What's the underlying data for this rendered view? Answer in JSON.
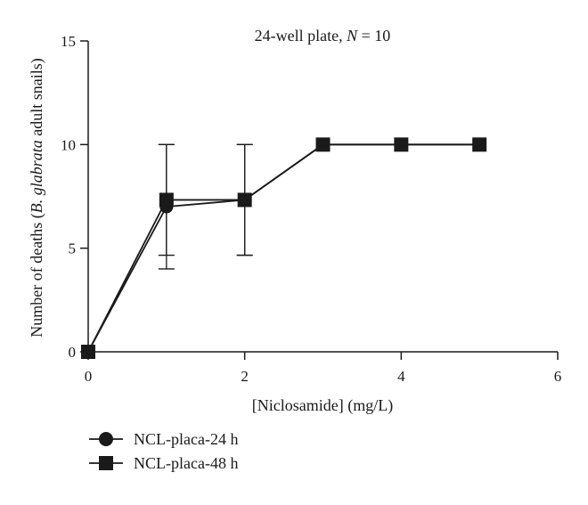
{
  "chart_data": {
    "type": "line",
    "annotation": {
      "prefix": "24-well plate, ",
      "italic": "N",
      "suffix": " = 10"
    },
    "xlabel": "[Niclosamide] (mg/L)",
    "ylabel": {
      "prefix": "Number of deaths (",
      "italic": "B. glabrata",
      "suffix": " adult snails)"
    },
    "xlim": [
      0,
      6
    ],
    "ylim": [
      0,
      15
    ],
    "x_ticks": [
      "0",
      "2",
      "4",
      "6"
    ],
    "y_ticks": [
      "0",
      "5",
      "10",
      "15"
    ],
    "grid": false,
    "legend_position": "bottom-left",
    "colors": {
      "ink": "#1a1a1a",
      "background": "#ffffff"
    },
    "series": [
      {
        "name": "NCL-placa-24 h",
        "marker": "circle",
        "x": [
          0,
          1,
          2,
          3,
          4,
          5
        ],
        "y": [
          0,
          7.0,
          7.33,
          10,
          10,
          10
        ],
        "error": [
          0,
          3.0,
          2.67,
          0,
          0,
          0
        ]
      },
      {
        "name": "NCL-placa-48 h",
        "marker": "square",
        "x": [
          0,
          1,
          2,
          3,
          4,
          5
        ],
        "y": [
          0,
          7.33,
          7.33,
          10,
          10,
          10
        ],
        "error": [
          0,
          2.67,
          2.67,
          0,
          0,
          0
        ]
      }
    ]
  }
}
